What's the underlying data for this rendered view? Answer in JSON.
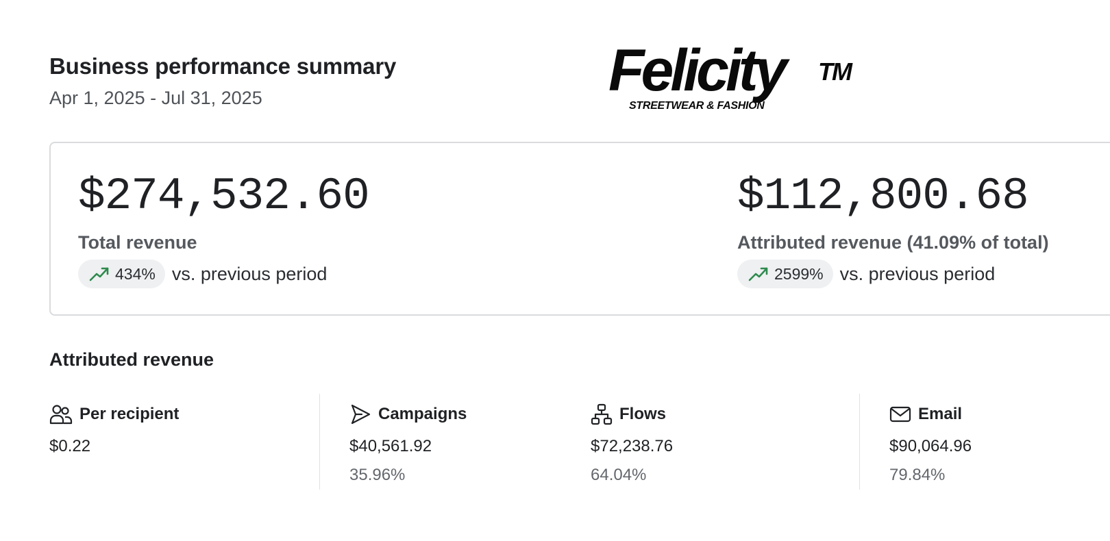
{
  "header": {
    "title": "Business performance summary",
    "date_range": "Apr 1, 2025 - Jul 31, 2025"
  },
  "logo": {
    "wordmark": "Felicity",
    "trademark": "TM",
    "tagline": "STREETWEAR & FASHION"
  },
  "summary": {
    "total": {
      "value": "$274,532.60",
      "label": "Total revenue",
      "change": "434%",
      "change_suffix": "vs. previous period",
      "icon": "trending-up-icon"
    },
    "attributed": {
      "value": "$112,800.68",
      "label": "Attributed revenue (41.09% of total)",
      "change": "2599%",
      "change_suffix": "vs. previous period",
      "icon": "trending-up-icon"
    }
  },
  "attributed_section": {
    "title": "Attributed revenue",
    "stats": [
      {
        "label": "Per recipient",
        "value": "$0.22",
        "percent": "",
        "icon": "users-icon"
      },
      {
        "label": "Campaigns",
        "value": "$40,561.92",
        "percent": "35.96%",
        "icon": "send-icon"
      },
      {
        "label": "Flows",
        "value": "$72,238.76",
        "percent": "64.04%",
        "icon": "flow-icon"
      },
      {
        "label": "Email",
        "value": "$90,064.96",
        "percent": "79.84%",
        "icon": "mail-icon"
      }
    ]
  },
  "colors": {
    "trend_up": "#2e8a4e",
    "pill_bg": "#eef0f1",
    "border": "#d9dbde"
  }
}
